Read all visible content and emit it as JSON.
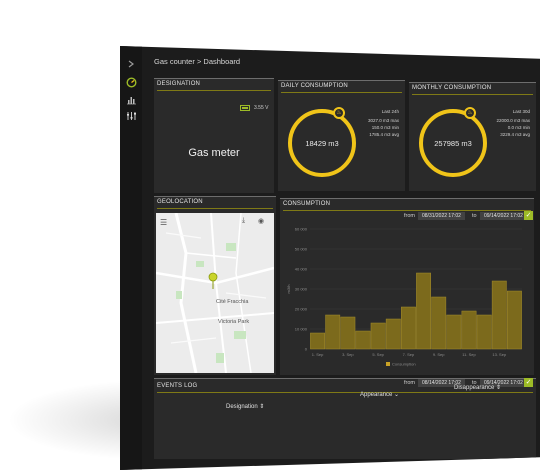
{
  "breadcrumb": "Gas counter > Dashboard",
  "designation": {
    "title": "DESIGNATION",
    "battery": "3.55 V",
    "device_name": "Gas meter"
  },
  "daily": {
    "title": "DAILY CONSUMPTION",
    "value": "18429 m3",
    "period": "Last 24h",
    "max": "3027.0 m3 max",
    "min": "150.0 m3 min",
    "avg": "1785.4 m3 avg"
  },
  "monthly": {
    "title": "MONTHLY CONSUMPTION",
    "value": "257985 m3",
    "period": "Last 30d",
    "max": "22000.0 m3 max",
    "min": "0.0 m3 min",
    "avg": "3229.4 m3 avg"
  },
  "geolocation": {
    "title": "GEOLOCATION",
    "places": [
      "Cité Fracchia",
      "Victoria Park"
    ]
  },
  "consumption": {
    "title": "CONSUMPTION",
    "from_label": "from",
    "from_value": "08/31/2022 17:02",
    "to_label": "to",
    "to_value": "09/14/2022 17:02"
  },
  "chart_data": {
    "type": "bar",
    "categories": [
      "1. Sep",
      "2. Sep",
      "3. Sep",
      "4. Sep",
      "5. Sep",
      "6. Sep",
      "7. Sep",
      "8. Sep",
      "9. Sep",
      "10. Sep",
      "11. Sep",
      "12. Sep",
      "13. Sep",
      "14. Sep"
    ],
    "x_tick_labels": [
      "1. Sep",
      "3. Sep",
      "5. Sep",
      "7. Sep",
      "9. Sep",
      "11. Sep",
      "13. Sep"
    ],
    "values": [
      8000,
      17000,
      16000,
      9000,
      13000,
      15000,
      21000,
      38000,
      26000,
      17000,
      19000,
      17000,
      34000,
      29000
    ],
    "ylabel": "m3/h",
    "yticks": [
      0,
      10000,
      20000,
      30000,
      40000,
      50000,
      60000
    ],
    "ytick_labels": [
      "0",
      "10 000",
      "20 000",
      "30 000",
      "40 000",
      "50 000",
      "60 000"
    ],
    "ylim": [
      0,
      60000
    ],
    "legend": [
      "Consumption"
    ],
    "grid": true,
    "colors": {
      "bar": "#7c6a1c",
      "bar_border": "#a48d2c",
      "legend": "#c9a226"
    }
  },
  "events_log": {
    "title": "EVENTS LOG",
    "from_label": "from",
    "from_value": "08/14/2022 17:02",
    "to_label": "to",
    "to_value": "09/14/2022 17:02",
    "columns": [
      "Designation",
      "Appearance",
      "Disappearance"
    ]
  },
  "colors": {
    "accent": "#f0c419",
    "check": "#9dbb27",
    "panel": "#2a2a2a",
    "background": "#1c1c1c"
  }
}
